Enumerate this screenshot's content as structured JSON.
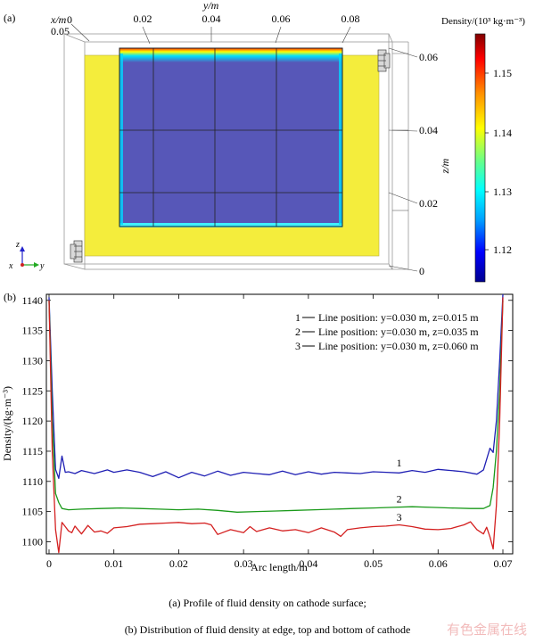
{
  "panel_a": {
    "label": "(a)",
    "x_axis_label": "x/m",
    "x_tick_0": "0",
    "x_tick_005": "0.05",
    "y_axis_label": "y/m",
    "y_ticks": [
      "0",
      "0.02",
      "0.04",
      "0.06",
      "0.08"
    ],
    "z_axis_label": "z/m",
    "z_ticks": [
      "0.06",
      "0.04",
      "0.02",
      "0"
    ],
    "triad": {
      "z": "z",
      "x": "x",
      "y": "y"
    },
    "colorbar": {
      "title": "Density/(10³ kg·m⁻³)",
      "ticks": [
        "1.15",
        "1.14",
        "1.13",
        "1.12"
      ],
      "stops": [
        "#00008f",
        "#0000ff",
        "#00a0ff",
        "#00ffff",
        "#60ff90",
        "#ffff00",
        "#ff9000",
        "#ff0000",
        "#800000"
      ]
    },
    "colors": {
      "cathode": "#5757b8",
      "bath": "#f4ed3c"
    }
  },
  "chart_data": {
    "type": "line",
    "panel_label": "(b)",
    "xlabel": "Arc length/m",
    "ylabel": "Density/(kg·m⁻³)",
    "xlim": [
      0,
      0.07
    ],
    "ylim": [
      1098,
      1141
    ],
    "x_ticks": [
      "0",
      "0.01",
      "0.02",
      "0.03",
      "0.04",
      "0.05",
      "0.06",
      "0.07"
    ],
    "y_ticks": [
      "1100",
      "1105",
      "1110",
      "1115",
      "1120",
      "1125",
      "1130",
      "1135",
      "1140"
    ],
    "legend_position": "top-right",
    "legend": [
      {
        "num": "1",
        "text": "Line position: y=0.030 m, z=0.015 m"
      },
      {
        "num": "2",
        "text": "Line position: y=0.030 m, z=0.035 m"
      },
      {
        "num": "3",
        "text": "Line position: y=0.030 m, z=0.060 m"
      }
    ],
    "series": [
      {
        "name": "1",
        "color": "#1f1fb4",
        "x": [
          0,
          0.0005,
          0.001,
          0.0015,
          0.002,
          0.0025,
          0.003,
          0.004,
          0.005,
          0.007,
          0.009,
          0.01,
          0.012,
          0.014,
          0.016,
          0.018,
          0.02,
          0.022,
          0.024,
          0.026,
          0.028,
          0.03,
          0.032,
          0.034,
          0.036,
          0.038,
          0.04,
          0.042,
          0.044,
          0.046,
          0.048,
          0.05,
          0.052,
          0.054,
          0.056,
          0.058,
          0.06,
          0.062,
          0.064,
          0.066,
          0.067,
          0.068,
          0.0685,
          0.069,
          0.0695,
          0.07
        ],
        "y": [
          1140.5,
          1125,
          1112,
          1110.5,
          1114.2,
          1111.5,
          1111.6,
          1111.3,
          1111.8,
          1111.3,
          1111.9,
          1111.5,
          1111.9,
          1111.5,
          1110.8,
          1111.6,
          1110.6,
          1111.5,
          1110.9,
          1111.7,
          1111.0,
          1111.5,
          1111.3,
          1111.1,
          1111.7,
          1111.1,
          1111.6,
          1111.2,
          1111.5,
          1111.4,
          1111.3,
          1111.6,
          1111.5,
          1111.4,
          1111.8,
          1111.5,
          1112.0,
          1111.8,
          1111.6,
          1111.2,
          1111.9,
          1115.5,
          1114.8,
          1120,
          1130,
          1141
        ]
      },
      {
        "name": "2",
        "color": "#1a9a1a",
        "x": [
          0,
          0.0005,
          0.001,
          0.0015,
          0.002,
          0.003,
          0.005,
          0.008,
          0.011,
          0.014,
          0.017,
          0.02,
          0.023,
          0.026,
          0.029,
          0.032,
          0.035,
          0.038,
          0.041,
          0.044,
          0.047,
          0.05,
          0.053,
          0.056,
          0.059,
          0.062,
          0.065,
          0.067,
          0.068,
          0.0685,
          0.069,
          0.0695,
          0.07
        ],
        "y": [
          1140,
          1120,
          1108,
          1106.5,
          1105.5,
          1105.3,
          1105.4,
          1105.5,
          1105.6,
          1105.5,
          1105.4,
          1105.3,
          1105.4,
          1105.2,
          1104.9,
          1105.0,
          1105.1,
          1105.2,
          1105.3,
          1105.4,
          1105.5,
          1105.6,
          1105.7,
          1105.8,
          1105.7,
          1105.6,
          1105.5,
          1105.5,
          1106,
          1109,
          1115,
          1125,
          1140
        ]
      },
      {
        "name": "3",
        "color": "#d42020",
        "x": [
          0,
          0.0005,
          0.001,
          0.0015,
          0.002,
          0.0025,
          0.003,
          0.0035,
          0.004,
          0.005,
          0.006,
          0.007,
          0.008,
          0.009,
          0.01,
          0.012,
          0.014,
          0.016,
          0.018,
          0.02,
          0.022,
          0.024,
          0.025,
          0.026,
          0.028,
          0.03,
          0.031,
          0.032,
          0.034,
          0.036,
          0.038,
          0.04,
          0.042,
          0.044,
          0.045,
          0.046,
          0.048,
          0.05,
          0.052,
          0.054,
          0.056,
          0.058,
          0.06,
          0.062,
          0.064,
          0.065,
          0.066,
          0.067,
          0.0675,
          0.068,
          0.0685,
          0.069,
          0.0695,
          0.07
        ],
        "y": [
          1140,
          1115,
          1102,
          1098.2,
          1103.2,
          1102.5,
          1101.8,
          1101.5,
          1102.6,
          1101.3,
          1102.7,
          1101.6,
          1101.8,
          1101.4,
          1102.3,
          1102.5,
          1102.9,
          1103.0,
          1103.1,
          1103.2,
          1103.0,
          1103.1,
          1102.8,
          1101.2,
          1102.0,
          1101.5,
          1102.5,
          1101.7,
          1102.3,
          1101.8,
          1102.0,
          1101.5,
          1102.3,
          1101.6,
          1100.9,
          1102.0,
          1102.3,
          1102.5,
          1102.6,
          1102.8,
          1102.5,
          1102.1,
          1102.0,
          1102.2,
          1102.8,
          1103.3,
          1102.0,
          1101.3,
          1102.4,
          1100.8,
          1098.8,
          1106,
          1120,
          1140.5
        ]
      }
    ],
    "curve_labels": [
      {
        "text": "1",
        "x": 0.054,
        "y": 1112.5
      },
      {
        "text": "2",
        "x": 0.054,
        "y": 1106.5
      },
      {
        "text": "3",
        "x": 0.054,
        "y": 1103.5
      }
    ]
  },
  "captions": {
    "a": "(a)  Profile of fluid density on cathode surface;",
    "b": "(b) Distribution of fluid density at edge, top and bottom of cathode"
  },
  "watermark": "有色金属在线"
}
